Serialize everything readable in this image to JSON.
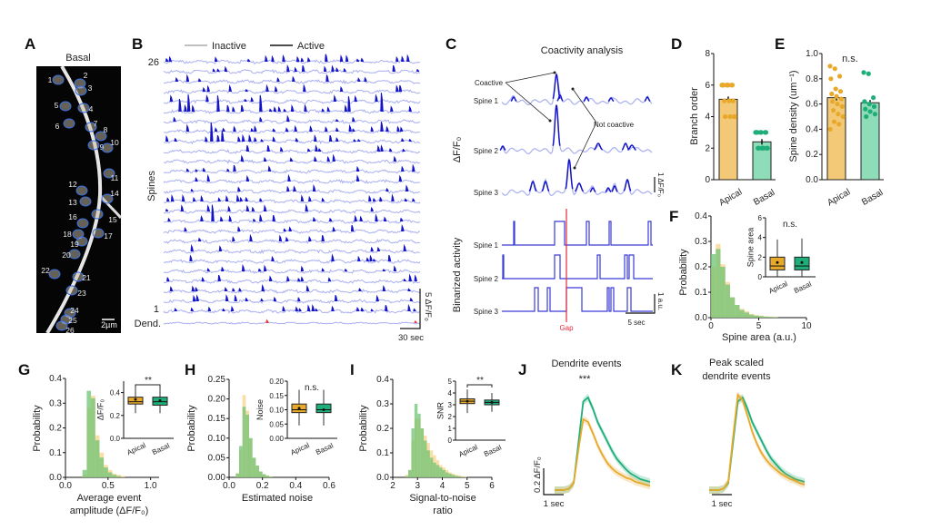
{
  "colors": {
    "apical": "#e8a92a",
    "basal": "#1fae7a",
    "apical_fill": "#f3c978",
    "basal_fill": "#8fdcb8",
    "inactive": "#a9aff0",
    "active": "#1414c8",
    "dendrite": "#e43c3c",
    "gap": "#e8283c"
  },
  "panel_a": {
    "label": "A",
    "title": "Basal",
    "scale": "2µm",
    "spines": [
      "1",
      "2",
      "3",
      "4",
      "5",
      "6",
      "7",
      "8",
      "9",
      "10",
      "11",
      "12",
      "13",
      "14",
      "15",
      "16",
      "17",
      "18",
      "19",
      "20",
      "21",
      "22",
      "23",
      "24",
      "25",
      "26"
    ]
  },
  "panel_b": {
    "label": "B",
    "legend_inactive": "Inactive",
    "legend_active": "Active",
    "top_row": "26",
    "bottom_row": "1",
    "ylabel": "Spines",
    "dend": "Dend.",
    "scale_y": "5 ΔF/F₀",
    "scale_x": "30 sec"
  },
  "panel_c": {
    "label": "C",
    "title": "Coactivity analysis",
    "ylabel_top": "ΔF/F₀",
    "ylabel_bottom": "Binarized activity",
    "spines": [
      "Spine 1",
      "Spine 2",
      "Spine 3"
    ],
    "coactive": "Coactive",
    "not_coactive": "Not coactive",
    "scale_top": "1 ΔF/F₀",
    "scale_bottom": "1 a.u.",
    "scale_x": "5 sec",
    "gap": "Gap"
  },
  "chart_data": [
    {
      "panel": "D",
      "label": "D",
      "type": "bar",
      "categories": [
        "Apical",
        "Basal"
      ],
      "values": [
        5.1,
        2.4
      ],
      "ylabel": "Branch order",
      "ylim": [
        0,
        8
      ],
      "yticks": [
        0,
        2,
        4,
        6,
        8
      ],
      "points": {
        "Apical": [
          6,
          6,
          6,
          6,
          6,
          6,
          6,
          6,
          5,
          5,
          5,
          4,
          4,
          4,
          4
        ],
        "Basal": [
          3,
          3,
          3,
          3,
          3,
          3,
          3,
          2,
          2,
          2,
          2,
          2,
          2,
          2
        ]
      }
    },
    {
      "panel": "E",
      "label": "E",
      "type": "bar",
      "categories": [
        "Apical",
        "Basal"
      ],
      "values": [
        0.65,
        0.61
      ],
      "ylabel": "Spine density (um⁻¹)",
      "ylim": [
        0,
        1
      ],
      "yticks": [
        0,
        0.2,
        0.4,
        0.6,
        0.8,
        1.0
      ],
      "annotation": "n.s.",
      "points": {
        "Apical": [
          0.9,
          0.88,
          0.82,
          0.8,
          0.72,
          0.7,
          0.68,
          0.66,
          0.64,
          0.62,
          0.6,
          0.58,
          0.55,
          0.52,
          0.5,
          0.46,
          0.44,
          0.4
        ],
        "Basal": [
          0.85,
          0.84,
          0.65,
          0.62,
          0.6,
          0.58,
          0.56,
          0.54,
          0.52,
          0.5
        ]
      }
    },
    {
      "panel": "F",
      "label": "F",
      "type": "histogram",
      "xlabel": "Spine area (a.u.)",
      "ylabel": "Probability",
      "xlim": [
        0,
        10
      ],
      "ylim": [
        0,
        0.4
      ],
      "xticks": [
        0,
        5,
        10
      ],
      "yticks": [
        0,
        0.1,
        0.2,
        0.3,
        0.4
      ],
      "bin_start": 0,
      "bin_width": 0.5,
      "series": [
        {
          "name": "Apical",
          "values": [
            0.2,
            0.29,
            0.21,
            0.14,
            0.08,
            0.05,
            0.035,
            0.025,
            0.015,
            0.01,
            0.008,
            0.005,
            0.004,
            0.003
          ]
        },
        {
          "name": "Basal",
          "values": [
            0.25,
            0.27,
            0.2,
            0.13,
            0.08,
            0.05,
            0.03,
            0.02,
            0.012,
            0.008,
            0.006,
            0.004,
            0.003,
            0.002
          ]
        }
      ],
      "inset": {
        "type": "box",
        "ylabel": "Spine area",
        "ylim": [
          0,
          6
        ],
        "yticks": [
          0,
          2,
          4,
          6
        ],
        "annotation": "n.s.",
        "categories": [
          "Apical",
          "Basal"
        ],
        "boxes": [
          {
            "min": 0,
            "q1": 0.7,
            "median": 1.1,
            "mean": 1.45,
            "q3": 2.0,
            "max": 3.8
          },
          {
            "min": 0,
            "q1": 0.7,
            "median": 1.1,
            "mean": 1.45,
            "q3": 2.0,
            "max": 3.9
          }
        ]
      }
    },
    {
      "panel": "G",
      "label": "G",
      "type": "histogram",
      "xlabel": "Average event amplitude (ΔF/F₀)",
      "ylabel": "Probability",
      "xlim": [
        0,
        1.1
      ],
      "ylim": [
        0,
        0.4
      ],
      "xticks": [
        0,
        0.5,
        1.0
      ],
      "yticks": [
        0,
        0.1,
        0.2,
        0.3,
        0.4
      ],
      "bin_start": 0.2,
      "bin_width": 0.05,
      "series": [
        {
          "name": "Apical",
          "values": [
            0.01,
            0.28,
            0.33,
            0.17,
            0.1,
            0.05,
            0.03,
            0.015,
            0.01,
            0.005
          ]
        },
        {
          "name": "Basal",
          "values": [
            0.03,
            0.35,
            0.32,
            0.15,
            0.08,
            0.04,
            0.02,
            0.01,
            0.005,
            0
          ]
        }
      ],
      "inset": {
        "type": "box",
        "ylabel": "ΔF/F₀",
        "ylim": [
          0,
          0.5
        ],
        "yticks": [
          0,
          0.2,
          0.4
        ],
        "annotation": "**",
        "categories": [
          "Apical",
          "Basal"
        ],
        "boxes": [
          {
            "min": 0.22,
            "q1": 0.3,
            "median": 0.32,
            "mean": 0.34,
            "q3": 0.36,
            "max": 0.46
          },
          {
            "min": 0.22,
            "q1": 0.29,
            "median": 0.32,
            "mean": 0.33,
            "q3": 0.36,
            "max": 0.46
          }
        ]
      }
    },
    {
      "panel": "H",
      "label": "H",
      "type": "histogram",
      "xlabel": "Estimated noise",
      "ylabel": "Probability",
      "xlim": [
        0,
        0.6
      ],
      "ylim": [
        0,
        0.25
      ],
      "xticks": [
        0,
        0.2,
        0.4,
        0.6
      ],
      "yticks": [
        0,
        0.05,
        0.1,
        0.15,
        0.2,
        0.25
      ],
      "bin_start": 0.04,
      "bin_width": 0.02,
      "series": [
        {
          "name": "Apical",
          "values": [
            0.01,
            0.07,
            0.21,
            0.17,
            0.1,
            0.05,
            0.03,
            0.015,
            0.008,
            0.005,
            0.003
          ]
        },
        {
          "name": "Basal",
          "values": [
            0.01,
            0.08,
            0.18,
            0.16,
            0.1,
            0.05,
            0.03,
            0.015,
            0.008,
            0.004,
            0.002
          ]
        }
      ],
      "inset": {
        "type": "box",
        "ylabel": "Noise",
        "ylim": [
          0,
          0.2
        ],
        "yticks": [
          0,
          0.05,
          0.1,
          0.15,
          0.2
        ],
        "annotation": "n.s.",
        "categories": [
          "Apical",
          "Basal"
        ],
        "boxes": [
          {
            "min": 0.045,
            "q1": 0.09,
            "median": 0.1,
            "mean": 0.105,
            "q3": 0.12,
            "max": 0.17
          },
          {
            "min": 0.045,
            "q1": 0.09,
            "median": 0.1,
            "mean": 0.1,
            "q3": 0.12,
            "max": 0.17
          }
        ]
      }
    },
    {
      "panel": "I",
      "label": "I",
      "type": "histogram",
      "xlabel": "Signal-to-noise ratio",
      "ylabel": "Probability",
      "xlim": [
        2,
        6
      ],
      "ylim": [
        0,
        0.4
      ],
      "xticks": [
        2,
        3,
        4,
        5,
        6
      ],
      "yticks": [
        0,
        0.1,
        0.2,
        0.3,
        0.4
      ],
      "bin_start": 2.5,
      "bin_width": 0.125,
      "series": [
        {
          "name": "Apical",
          "values": [
            0.01,
            0.03,
            0.15,
            0.24,
            0.24,
            0.2,
            0.17,
            0.14,
            0.11,
            0.09,
            0.07,
            0.05,
            0.04,
            0.03,
            0.02,
            0.015,
            0.01,
            0.008,
            0.005,
            0.003
          ]
        },
        {
          "name": "Basal",
          "values": [
            0.005,
            0.03,
            0.2,
            0.3,
            0.26,
            0.2,
            0.15,
            0.11,
            0.08,
            0.06,
            0.05,
            0.04,
            0.03,
            0.02,
            0.015,
            0.01,
            0.006,
            0.004,
            0.002,
            0.001
          ]
        }
      ],
      "inset": {
        "type": "box",
        "ylabel": "SNR",
        "ylim": [
          0,
          5
        ],
        "yticks": [
          0,
          1,
          2,
          3,
          4,
          5
        ],
        "annotation": "**",
        "categories": [
          "Apical",
          "Basal"
        ],
        "boxes": [
          {
            "min": 2.3,
            "q1": 3.1,
            "median": 3.3,
            "mean": 3.3,
            "q3": 3.5,
            "max": 4.3
          },
          {
            "min": 2.4,
            "q1": 3.0,
            "median": 3.2,
            "mean": 3.2,
            "q3": 3.4,
            "max": 4.0
          }
        ]
      }
    },
    {
      "panel": "J",
      "label": "J",
      "type": "line",
      "title": "Dendrite events",
      "annotation": "***",
      "scale_y": "0.2 ΔF/F₀",
      "scale_x": "1 sec",
      "x_step_sec": 0.25,
      "series": [
        {
          "name": "Basal",
          "values": [
            0,
            0,
            0,
            0.01,
            0.05,
            0.35,
            0.65,
            0.68,
            0.6,
            0.5,
            0.43,
            0.36,
            0.29,
            0.23,
            0.19,
            0.15,
            0.12,
            0.1,
            0.08,
            0.07,
            0.06
          ]
        },
        {
          "name": "Apical",
          "values": [
            0,
            0,
            0,
            0.01,
            0.05,
            0.3,
            0.52,
            0.5,
            0.42,
            0.33,
            0.26,
            0.2,
            0.16,
            0.13,
            0.11,
            0.09,
            0.08,
            0.06,
            0.05,
            0.04,
            0.03
          ]
        }
      ]
    },
    {
      "panel": "K",
      "label": "K",
      "type": "line",
      "title": [
        "Peak scaled",
        "dendrite events"
      ],
      "scale_x": "1 sec",
      "x_step_sec": 0.25,
      "series": [
        {
          "name": "Basal",
          "values": [
            0,
            0,
            0,
            0.01,
            0.05,
            0.35,
            0.65,
            0.68,
            0.6,
            0.5,
            0.43,
            0.36,
            0.29,
            0.23,
            0.19,
            0.15,
            0.12,
            0.1,
            0.08,
            0.07,
            0.06
          ]
        },
        {
          "name": "Apical",
          "values": [
            0,
            0,
            0,
            0.01,
            0.06,
            0.39,
            0.7,
            0.66,
            0.55,
            0.43,
            0.34,
            0.27,
            0.22,
            0.18,
            0.15,
            0.12,
            0.1,
            0.08,
            0.07,
            0.05,
            0.04
          ]
        }
      ]
    }
  ]
}
